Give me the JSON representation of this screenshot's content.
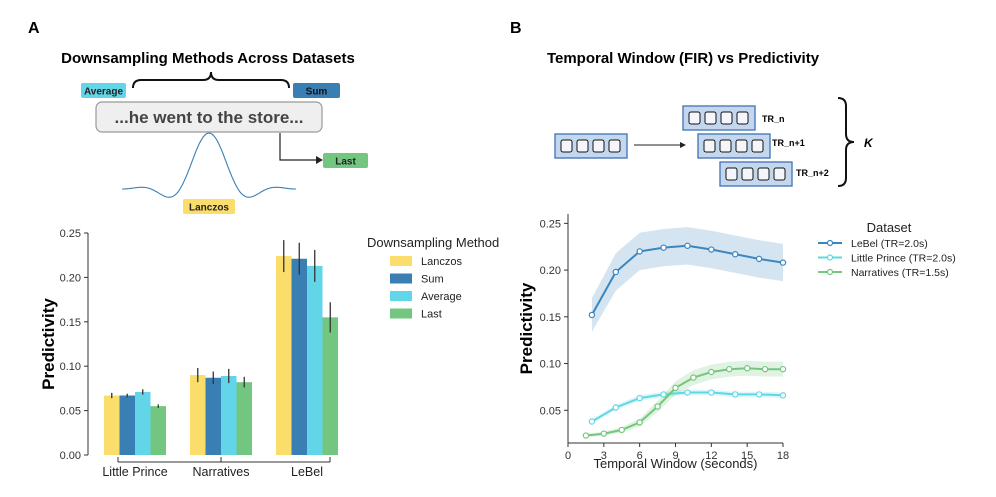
{
  "panel_a": {
    "label": "A",
    "title": "Downsampling Methods Across Datasets",
    "schematic": {
      "sentence": "...he went to the store...",
      "average_tag": "Average",
      "sum_tag": "Sum",
      "last_tag": "Last",
      "lanczos_tag": "Lanczos"
    }
  },
  "panel_b": {
    "label": "B",
    "title": "Temporal Window (FIR) vs Predictivity",
    "schematic": {
      "tr_labels": [
        "TR_n",
        "TR_n+1",
        "TR_n+2"
      ],
      "k_label": "K"
    }
  },
  "colors": {
    "lanczos": "#fadd6b",
    "sum": "#3a7fb4",
    "average": "#62d6e8",
    "last": "#72c680",
    "lebel": "#3a86c0",
    "little_prince": "#5fd8e6",
    "narratives": "#74c77c",
    "box_fill": "#c5d7ee",
    "box_stroke": "#4a7ab8"
  },
  "chart_data": [
    {
      "type": "bar",
      "title": "Downsampling Methods Across Datasets",
      "xlabel": "",
      "ylabel": "Predictivity",
      "ylim": [
        0,
        0.25
      ],
      "yticks": [
        "0.00",
        "0.05",
        "0.10",
        "0.15",
        "0.20",
        "0.25"
      ],
      "categories": [
        "Little Prince",
        "Narratives",
        "LeBel"
      ],
      "legend_title": "Downsampling Method",
      "legend_position": "right",
      "series": [
        {
          "name": "Lanczos",
          "key": "lanczos",
          "values": [
            0.067,
            0.09,
            0.224
          ],
          "errors": [
            0.003,
            0.008,
            0.018
          ]
        },
        {
          "name": "Sum",
          "key": "sum",
          "values": [
            0.067,
            0.087,
            0.221
          ],
          "errors": [
            0.002,
            0.007,
            0.018
          ]
        },
        {
          "name": "Average",
          "key": "average",
          "values": [
            0.071,
            0.089,
            0.213
          ],
          "errors": [
            0.003,
            0.008,
            0.018
          ]
        },
        {
          "name": "Last",
          "key": "last",
          "values": [
            0.055,
            0.082,
            0.155
          ],
          "errors": [
            0.002,
            0.006,
            0.017
          ]
        }
      ]
    },
    {
      "type": "line",
      "title": "Temporal Window (FIR) vs Predictivity",
      "xlabel": "Temporal Window (seconds)",
      "ylabel": "Predictivity",
      "xlim": [
        0,
        18
      ],
      "ylim": [
        0.015,
        0.26
      ],
      "xticks": [
        "0",
        "3",
        "6",
        "9",
        "12",
        "15",
        "18"
      ],
      "yticks": [
        "0.05",
        "0.10",
        "0.15",
        "0.20",
        "0.25"
      ],
      "legend_title": "Dataset",
      "legend_position": "right",
      "series": [
        {
          "name": "LeBel (TR=2.0s)",
          "key": "lebel",
          "x": [
            2,
            4,
            6,
            8,
            10,
            12,
            14,
            16,
            18
          ],
          "y": [
            0.152,
            0.198,
            0.22,
            0.224,
            0.226,
            0.222,
            0.217,
            0.212,
            0.208
          ],
          "ci": [
            0.018,
            0.02,
            0.02,
            0.02,
            0.02,
            0.02,
            0.02,
            0.02,
            0.02
          ]
        },
        {
          "name": "Little Prince (TR=2.0s)",
          "key": "little_prince",
          "x": [
            2,
            4,
            6,
            8,
            10,
            12,
            14,
            16,
            18
          ],
          "y": [
            0.038,
            0.053,
            0.063,
            0.067,
            0.069,
            0.069,
            0.067,
            0.067,
            0.066
          ],
          "ci": [
            0.002,
            0.003,
            0.003,
            0.003,
            0.003,
            0.003,
            0.003,
            0.003,
            0.003
          ]
        },
        {
          "name": "Narratives (TR=1.5s)",
          "key": "narratives",
          "x": [
            1.5,
            3,
            4.5,
            6,
            7.5,
            9,
            10.5,
            12,
            13.5,
            15,
            16.5,
            18
          ],
          "y": [
            0.023,
            0.025,
            0.029,
            0.037,
            0.054,
            0.074,
            0.085,
            0.091,
            0.094,
            0.095,
            0.094,
            0.094
          ],
          "ci": [
            0.002,
            0.002,
            0.003,
            0.004,
            0.006,
            0.007,
            0.008,
            0.008,
            0.008,
            0.008,
            0.008,
            0.008
          ]
        }
      ]
    }
  ]
}
